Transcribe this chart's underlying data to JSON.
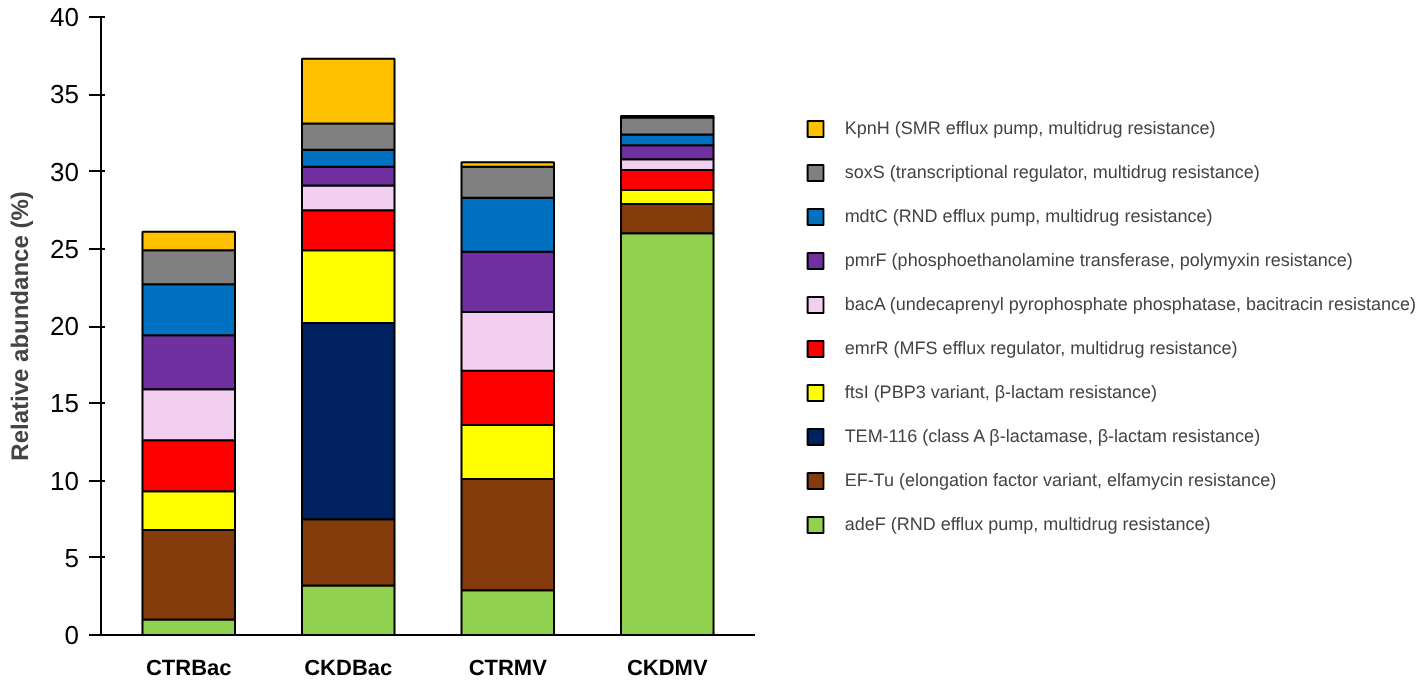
{
  "chart_data": {
    "type": "bar",
    "stacked": true,
    "ylabel": "Relative abundance (%)",
    "categories": [
      "CTRBac",
      "CKDBac",
      "CTRMV",
      "CKDMV"
    ],
    "ylim": [
      0,
      40
    ],
    "yticks": [
      0,
      5,
      10,
      15,
      20,
      25,
      30,
      35,
      40
    ],
    "grid": false,
    "legend": "right",
    "series": [
      {
        "name": "adeF (RND efflux pump, multidrug resistance)",
        "color": "#92d050",
        "values": [
          1.0,
          3.2,
          2.9,
          26.0
        ]
      },
      {
        "name": "EF-Tu (elongation factor variant, elfamycin resistance)",
        "color": "#843c0c",
        "values": [
          5.8,
          4.3,
          7.2,
          1.9
        ]
      },
      {
        "name": "TEM-116 (class A β-lactamase, β-lactam resistance)",
        "color": "#002060",
        "values": [
          0,
          12.7,
          0,
          0
        ]
      },
      {
        "name": "ftsI (PBP3 variant, β-lactam resistance)",
        "color": "#ffff00",
        "values": [
          2.5,
          4.7,
          3.5,
          0.9
        ]
      },
      {
        "name": "emrR (MFS efflux regulator, multidrug resistance)",
        "color": "#ff0000",
        "values": [
          3.3,
          2.6,
          3.5,
          1.3
        ]
      },
      {
        "name": "bacA (undecaprenyl pyrophosphate phosphatase, bacitracin resistance)",
        "color": "#f2cef0",
        "values": [
          3.3,
          1.6,
          3.8,
          0.7
        ]
      },
      {
        "name": "pmrF (phosphoethanolamine transferase, polymyxin resistance)",
        "color": "#7030a0",
        "values": [
          3.5,
          1.2,
          3.9,
          0.9
        ]
      },
      {
        "name": "mdtC (RND efflux pump, multidrug resistance)",
        "color": "#0070c0",
        "values": [
          3.3,
          1.1,
          3.5,
          0.7
        ]
      },
      {
        "name": "soxS (transcriptional regulator, multidrug resistance)",
        "color": "#808080",
        "values": [
          2.2,
          1.7,
          2.0,
          1.1
        ]
      },
      {
        "name": "KpnH (SMR efflux pump, multidrug resistance)",
        "color": "#ffc000",
        "values": [
          1.2,
          4.2,
          0.3,
          0.1
        ]
      }
    ]
  }
}
